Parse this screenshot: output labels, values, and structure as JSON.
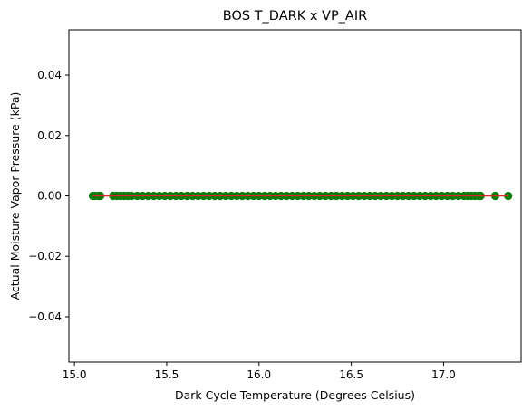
{
  "chart_data": {
    "type": "scatter",
    "title": "BOS T_DARK x VP_AIR",
    "xlabel": "Dark Cycle Temperature (Degrees Celsius)",
    "ylabel": "Actual Moisture Vapor Pressure (kPa)",
    "xlim": [
      14.97,
      17.42
    ],
    "ylim": [
      -0.055,
      0.055
    ],
    "xticks": [
      15.0,
      15.5,
      16.0,
      16.5,
      17.0
    ],
    "xtick_labels": [
      "15.0",
      "15.5",
      "16.0",
      "16.5",
      "17.0"
    ],
    "yticks": [
      0.04,
      0.02,
      0.0,
      -0.02,
      -0.04
    ],
    "ytick_labels": [
      "0.04",
      "0.02",
      "0.00",
      "−0.02",
      "−0.04"
    ],
    "grid": false,
    "colors": {
      "points": "#0a7d0a",
      "fit_line": "#d62728"
    },
    "series": [
      {
        "kind": "points",
        "x": [
          15.1,
          15.11,
          15.13,
          15.14,
          15.21,
          15.23,
          15.25,
          15.27,
          15.29,
          15.31,
          15.34,
          15.37,
          15.4,
          15.43,
          15.46,
          15.49,
          15.52,
          15.55,
          15.58,
          15.61,
          15.64,
          15.67,
          15.7,
          15.73,
          15.76,
          15.79,
          15.82,
          15.85,
          15.88,
          15.91,
          15.94,
          15.97,
          16.0,
          16.03,
          16.06,
          16.09,
          16.12,
          16.15,
          16.18,
          16.21,
          16.24,
          16.27,
          16.3,
          16.33,
          16.36,
          16.39,
          16.42,
          16.45,
          16.48,
          16.51,
          16.54,
          16.57,
          16.6,
          16.63,
          16.66,
          16.69,
          16.72,
          16.75,
          16.78,
          16.81,
          16.84,
          16.87,
          16.9,
          16.93,
          16.96,
          16.99,
          17.02,
          17.05,
          17.08,
          17.11,
          17.13,
          17.15,
          17.17,
          17.19,
          17.2,
          17.28,
          17.35
        ],
        "y_constant": 0.0
      },
      {
        "kind": "line",
        "x": [
          15.1,
          17.35
        ],
        "y": [
          0.0,
          0.0
        ]
      }
    ]
  }
}
